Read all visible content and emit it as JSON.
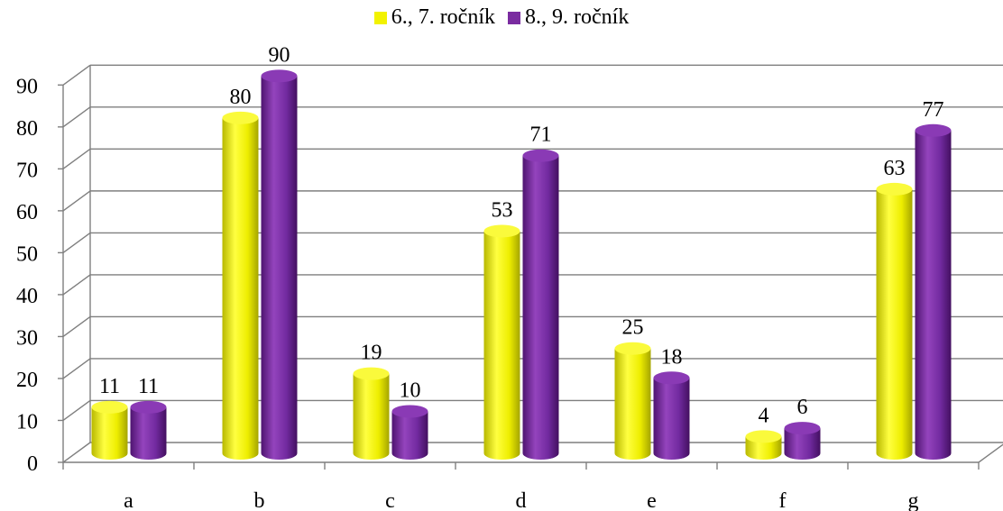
{
  "chart_data": {
    "type": "bar",
    "categories": [
      "a",
      "b",
      "c",
      "d",
      "e",
      "f",
      "g"
    ],
    "series": [
      {
        "name": "6., 7. ročník",
        "values": [
          11,
          80,
          19,
          53,
          25,
          4,
          63
        ],
        "color": "#f2f200"
      },
      {
        "name": "8., 9. ročník",
        "values": [
          11,
          90,
          10,
          71,
          18,
          6,
          77
        ],
        "color": "#7a2ca0"
      }
    ],
    "y_ticks": [
      "0",
      "10",
      "20",
      "30",
      "40",
      "50",
      "60",
      "70",
      "80",
      "90"
    ],
    "ylim": [
      0,
      90
    ],
    "grid": true,
    "legend_position": "top",
    "style": "3d-cylinder"
  }
}
